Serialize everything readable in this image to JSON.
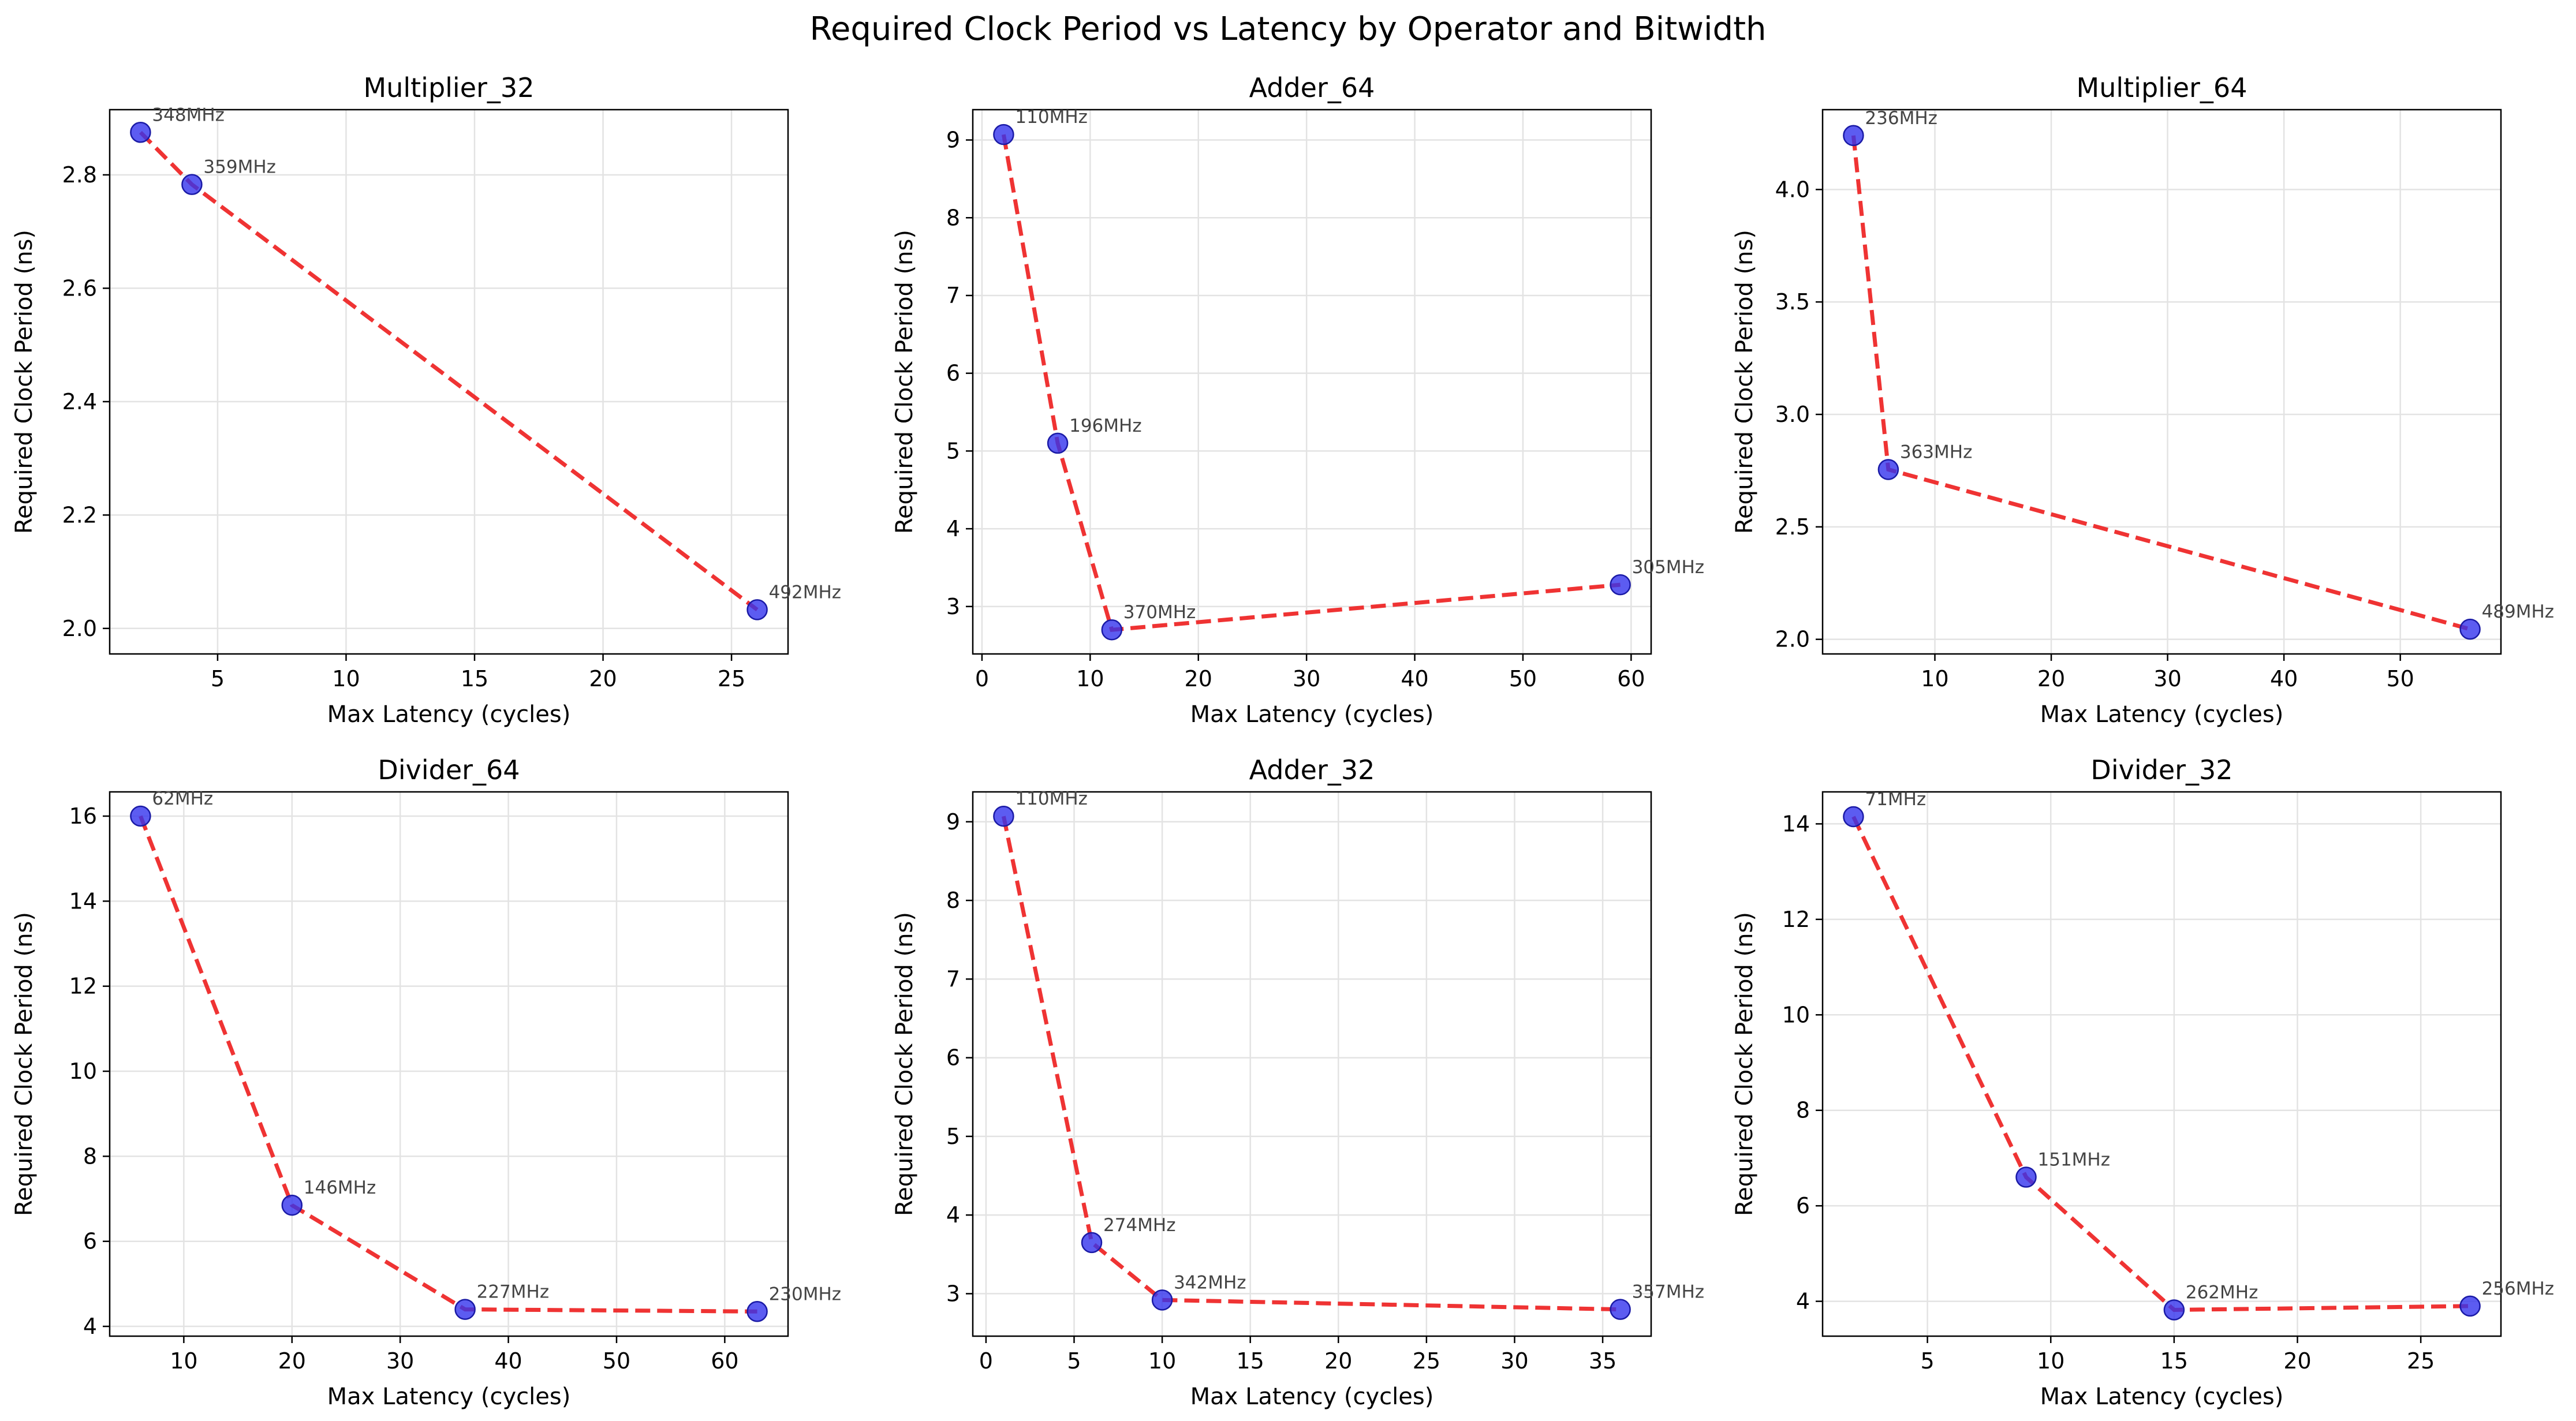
{
  "figure": {
    "suptitle": "Required Clock Period vs Latency by Operator and Bitwidth"
  },
  "colors": {
    "line": "#ee2222",
    "marker_fill": "#3333ee",
    "marker_edge": "#1a1aa6",
    "annotation": "#444444",
    "grid": "#e3e3e3"
  },
  "chart_data": [
    {
      "type": "line",
      "title": "Multiplier_32",
      "xlabel": "Max Latency (cycles)",
      "ylabel": "Required Clock Period (ns)",
      "xlim": [
        0.8,
        27.2
      ],
      "ylim": [
        1.955,
        2.915
      ],
      "xticks": [
        5,
        10,
        15,
        20,
        25
      ],
      "yticks": [
        2.0,
        2.2,
        2.4,
        2.6,
        2.8
      ],
      "ytick_decimals": 1,
      "grid": true,
      "points": [
        {
          "x": 2,
          "y": 2.875,
          "label": "348MHz"
        },
        {
          "x": 4,
          "y": 2.783,
          "label": "359MHz"
        },
        {
          "x": 26,
          "y": 2.033,
          "label": "492MHz"
        }
      ]
    },
    {
      "type": "line",
      "title": "Adder_64",
      "xlabel": "Max Latency (cycles)",
      "ylabel": "Required Clock Period (ns)",
      "xlim": [
        -0.85,
        61.85
      ],
      "ylim": [
        2.39,
        9.39
      ],
      "xticks": [
        0,
        10,
        20,
        30,
        40,
        50,
        60
      ],
      "yticks": [
        3,
        4,
        5,
        6,
        7,
        8,
        9
      ],
      "ytick_decimals": 0,
      "grid": true,
      "points": [
        {
          "x": 2,
          "y": 9.07,
          "label": "110MHz"
        },
        {
          "x": 7,
          "y": 5.1,
          "label": "196MHz"
        },
        {
          "x": 12,
          "y": 2.7,
          "label": "370MHz"
        },
        {
          "x": 59,
          "y": 3.28,
          "label": "305MHz"
        }
      ]
    },
    {
      "type": "line",
      "title": "Multiplier_64",
      "xlabel": "Max Latency (cycles)",
      "ylabel": "Required Clock Period (ns)",
      "xlim": [
        0.35,
        58.65
      ],
      "ylim": [
        1.935,
        4.355
      ],
      "xticks": [
        10,
        20,
        30,
        40,
        50
      ],
      "yticks": [
        2.0,
        2.5,
        3.0,
        3.5,
        4.0
      ],
      "ytick_decimals": 1,
      "grid": true,
      "points": [
        {
          "x": 3,
          "y": 4.24,
          "label": "236MHz"
        },
        {
          "x": 6,
          "y": 2.755,
          "label": "363MHz"
        },
        {
          "x": 56,
          "y": 2.045,
          "label": "489MHz"
        }
      ]
    },
    {
      "type": "line",
      "title": "Divider_64",
      "xlabel": "Max Latency (cycles)",
      "ylabel": "Required Clock Period (ns)",
      "xlim": [
        3.15,
        65.85
      ],
      "ylim": [
        3.77,
        16.57
      ],
      "xticks": [
        10,
        20,
        30,
        40,
        50,
        60
      ],
      "yticks": [
        4,
        6,
        8,
        10,
        12,
        14,
        16
      ],
      "ytick_decimals": 0,
      "grid": true,
      "points": [
        {
          "x": 6,
          "y": 16.0,
          "label": "62MHz"
        },
        {
          "x": 20,
          "y": 6.85,
          "label": "146MHz"
        },
        {
          "x": 36,
          "y": 4.4,
          "label": "227MHz"
        },
        {
          "x": 63,
          "y": 4.35,
          "label": "230MHz"
        }
      ]
    },
    {
      "type": "line",
      "title": "Adder_32",
      "xlabel": "Max Latency (cycles)",
      "ylabel": "Required Clock Period (ns)",
      "xlim": [
        -0.75,
        37.75
      ],
      "ylim": [
        2.46,
        9.38
      ],
      "xticks": [
        0,
        5,
        10,
        15,
        20,
        25,
        30,
        35
      ],
      "yticks": [
        3,
        4,
        5,
        6,
        7,
        8,
        9
      ],
      "ytick_decimals": 0,
      "grid": true,
      "points": [
        {
          "x": 1,
          "y": 9.07,
          "label": "110MHz"
        },
        {
          "x": 6,
          "y": 3.65,
          "label": "274MHz"
        },
        {
          "x": 10,
          "y": 2.92,
          "label": "342MHz"
        },
        {
          "x": 36,
          "y": 2.8,
          "label": "357MHz"
        }
      ]
    },
    {
      "type": "line",
      "title": "Divider_32",
      "xlabel": "Max Latency (cycles)",
      "ylabel": "Required Clock Period (ns)",
      "xlim": [
        0.75,
        28.25
      ],
      "ylim": [
        3.27,
        14.67
      ],
      "xticks": [
        5,
        10,
        15,
        20,
        25
      ],
      "yticks": [
        4,
        6,
        8,
        10,
        12,
        14
      ],
      "ytick_decimals": 0,
      "grid": true,
      "points": [
        {
          "x": 2,
          "y": 14.15,
          "label": "71MHz"
        },
        {
          "x": 9,
          "y": 6.6,
          "label": "151MHz"
        },
        {
          "x": 15,
          "y": 3.82,
          "label": "262MHz"
        },
        {
          "x": 27,
          "y": 3.9,
          "label": "256MHz"
        }
      ]
    }
  ]
}
